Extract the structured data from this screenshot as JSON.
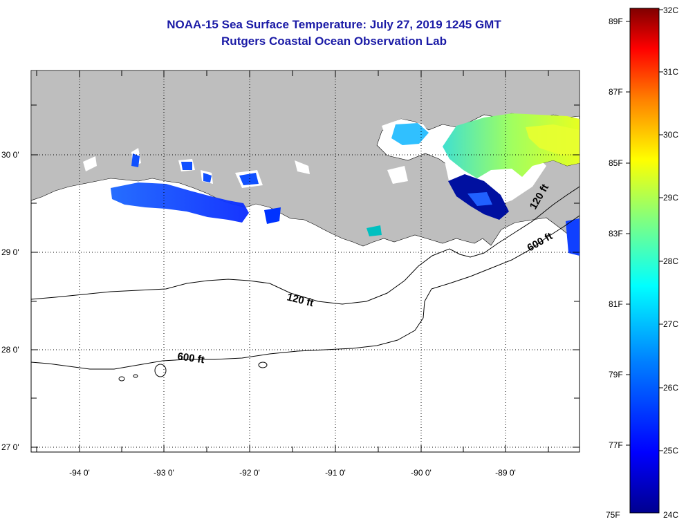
{
  "title_line1": "NOAA-15 Sea Surface Temperature:  July 27, 2019 1245 GMT",
  "title_line2": "Rutgers Coastal Ocean Observation Lab",
  "lat_labels": [
    "30 0'",
    "29 0'",
    "28 0'",
    "27 0'"
  ],
  "lon_labels": [
    "-94 0'",
    "-93 0'",
    "-92 0'",
    "-91 0'",
    "-90 0'",
    "-89 0'"
  ],
  "contour_labels": {
    "c120_shelf": "120 ft",
    "c600_shelf": "600 ft",
    "c600_east": "600 ft",
    "c120_east": "120 ft"
  },
  "colorbar": {
    "celsius_labels": [
      "32C",
      "31C",
      "30C",
      "29C",
      "28C",
      "27C",
      "26C",
      "25C",
      "24C"
    ],
    "fahrenheit_labels": [
      "89F",
      "87F",
      "85F",
      "83F",
      "81F",
      "79F",
      "77F",
      "75F"
    ],
    "colors": [
      "#00008f",
      "#0000ff",
      "#0080ff",
      "#00ffff",
      "#80ff80",
      "#ffff00",
      "#ff8000",
      "#ff0000",
      "#800000"
    ]
  },
  "colors": {
    "land": "#bebebe",
    "title": "#1a1aa6"
  }
}
